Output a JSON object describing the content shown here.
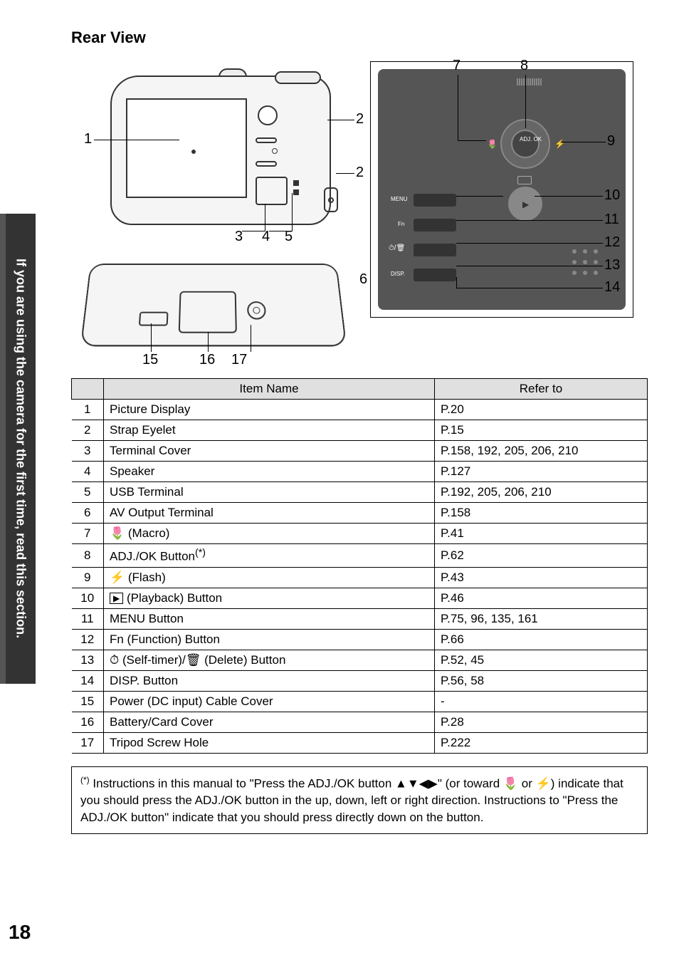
{
  "page_number": "18",
  "side_tab_text": "If you are using the camera for the first time, read this section.",
  "section_title": "Rear View",
  "diagram_labels": {
    "l1": "1",
    "l2a": "2",
    "l2b": "2",
    "l3": "3",
    "l4": "4",
    "l5": "5",
    "l6": "6",
    "l7": "7",
    "l8": "8",
    "l9": "9",
    "l10": "10",
    "l11": "11",
    "l12": "12",
    "l13": "13",
    "l14": "14",
    "l15": "15",
    "l16": "16",
    "l17": "17"
  },
  "panel_text": {
    "adj": "ADJ.\nOK",
    "menu": "MENU",
    "fn": "Fn",
    "disp": "DISP."
  },
  "table": {
    "headers": [
      "",
      "Item Name",
      "Refer to"
    ],
    "rows": [
      {
        "n": "1",
        "name": "Picture Display",
        "ref": "P.20"
      },
      {
        "n": "2",
        "name": "Strap Eyelet",
        "ref": "P.15"
      },
      {
        "n": "3",
        "name": "Terminal Cover",
        "ref": "P.158, 192, 205, 206, 210"
      },
      {
        "n": "4",
        "name": "Speaker",
        "ref": "P.127"
      },
      {
        "n": "5",
        "name": "USB Terminal",
        "ref": "P.192, 205, 206, 210"
      },
      {
        "n": "6",
        "name": "AV Output Terminal",
        "ref": "P.158"
      },
      {
        "n": "7",
        "name": "🌷 (Macro)",
        "ref": "P.41"
      },
      {
        "n": "8",
        "name": "ADJ./OK Button(*)",
        "ref": "P.62",
        "sup": true
      },
      {
        "n": "9",
        "name": "⚡ (Flash)",
        "ref": "P.43"
      },
      {
        "n": "10",
        "name": "▶ (Playback) Button",
        "ref": "P.46",
        "playback": true
      },
      {
        "n": "11",
        "name": "MENU Button",
        "ref": "P.75, 96, 135, 161"
      },
      {
        "n": "12",
        "name": "Fn (Function) Button",
        "ref": "P.66"
      },
      {
        "n": "13",
        "name": "⏱ (Self-timer)/🗑 (Delete) Button",
        "ref": "P.52, 45",
        "timer": true
      },
      {
        "n": "14",
        "name": "DISP. Button",
        "ref": "P.56, 58"
      },
      {
        "n": "15",
        "name": "Power (DC input) Cable Cover",
        "ref": "-"
      },
      {
        "n": "16",
        "name": "Battery/Card Cover",
        "ref": "P.28"
      },
      {
        "n": "17",
        "name": "Tripod Screw Hole",
        "ref": "P.222"
      }
    ]
  },
  "footnote": {
    "marker": "(*)",
    "text_pre": "Instructions in this manual to \"Press the ADJ./OK button ",
    "arrows": "▲▼◀▶",
    "text_mid": "\" (or toward ",
    "macro": "🌷",
    "text_mid2": " or ",
    "flash": "⚡",
    "text_post": ") indicate that you should press the ADJ./OK button in the up, down, left or right direction. Instructions to \"Press the ADJ./OK button\" indicate that you should press directly down on the button."
  },
  "colors": {
    "side_tab_outer": "#555555",
    "side_tab_inner": "#333333",
    "table_header_bg": "#e0e0e0",
    "panel_bg": "#555555"
  }
}
